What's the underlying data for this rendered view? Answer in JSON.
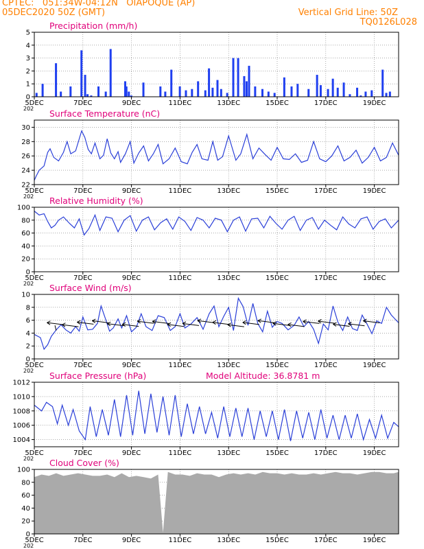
{
  "header": {
    "line1": "CPTEC:   051:34W-04:12N   OIAPOQUE (AP)",
    "line2": "05DEC2020 50Z (GMT)",
    "right1": "Vertical Grid Line: 50Z",
    "right2": "TQ0126L028"
  },
  "colors": {
    "header": "#ff8000",
    "title": "#e0007a",
    "line": "#2a3fd8",
    "bar": "#1f3ff0",
    "cloud": "#aaaaaa",
    "grid": "#777777"
  },
  "x_axis": {
    "labels": [
      "5DEC",
      "7DEC",
      "9DEC",
      "11DEC",
      "13DEC",
      "15DEC",
      "17DEC",
      "19DEC"
    ],
    "label_days": [
      0,
      2,
      4,
      6,
      8,
      10,
      12,
      14
    ],
    "sublabel": "202"
  },
  "extra_labels": {
    "model_altitude": "Model Altitude: 36.8781 m"
  },
  "chart_data": [
    {
      "type": "bar",
      "title": "Precipitation (mm/h)",
      "ylim": [
        0,
        5
      ],
      "yticks": [
        0,
        1,
        2,
        3,
        4,
        5
      ],
      "days": [
        0.05,
        0.3,
        0.85,
        1.05,
        1.45,
        1.9,
        2.05,
        2.15,
        2.3,
        2.6,
        2.9,
        3.1,
        3.7,
        3.75,
        3.85,
        3.95,
        4.45,
        5.15,
        5.35,
        5.6,
        5.95,
        6.2,
        6.45,
        6.7,
        7.0,
        7.15,
        7.3,
        7.5,
        7.65,
        7.9,
        8.15,
        8.35,
        8.6,
        8.7,
        8.8,
        9.05,
        9.35,
        9.6,
        9.85,
        10.25,
        10.55,
        10.8,
        11.25,
        11.6,
        11.75,
        12.05,
        12.25,
        12.45,
        12.7,
        12.95,
        13.25,
        13.4,
        13.6,
        13.85,
        14.3,
        14.45,
        14.6
      ],
      "values": [
        0.3,
        1.0,
        2.6,
        0.4,
        0.8,
        3.6,
        1.7,
        0.2,
        0.1,
        0.8,
        0.4,
        3.7,
        1.2,
        0.8,
        0.4,
        0.1,
        1.1,
        0.8,
        0.4,
        2.1,
        0.8,
        0.5,
        0.6,
        1.2,
        0.5,
        2.2,
        0.7,
        1.3,
        0.6,
        0.3,
        3.0,
        3.0,
        1.6,
        1.2,
        2.4,
        0.8,
        0.6,
        0.4,
        0.3,
        1.5,
        0.8,
        1.0,
        0.6,
        1.7,
        0.9,
        0.6,
        1.4,
        0.7,
        1.1,
        0.2,
        0.7,
        0.1,
        0.4,
        0.5,
        2.1,
        0.3,
        0.4
      ]
    },
    {
      "type": "line",
      "title": "Surface Temperature (nC)",
      "ylim": [
        22,
        31
      ],
      "yticks": [
        22,
        24,
        26,
        28,
        30
      ],
      "x": [
        0,
        0.08,
        0.2,
        0.4,
        0.55,
        0.65,
        0.8,
        1.0,
        1.2,
        1.35,
        1.5,
        1.7,
        1.95,
        2.08,
        2.22,
        2.35,
        2.5,
        2.7,
        2.85,
        3.0,
        3.15,
        3.3,
        3.45,
        3.55,
        3.75,
        3.95,
        4.1,
        4.3,
        4.5,
        4.7,
        4.9,
        5.1,
        5.3,
        5.55,
        5.8,
        6.05,
        6.3,
        6.5,
        6.7,
        6.9,
        7.15,
        7.35,
        7.55,
        7.75,
        8.0,
        8.3,
        8.5,
        8.75,
        9.0,
        9.25,
        9.5,
        9.75,
        10.0,
        10.25,
        10.5,
        10.75,
        11.0,
        11.25,
        11.5,
        11.75,
        12.0,
        12.25,
        12.5,
        12.75,
        13.0,
        13.25,
        13.5,
        13.75,
        14.0,
        14.25,
        14.5,
        14.75,
        15.0
      ],
      "values": [
        22.6,
        23.2,
        24.0,
        24.6,
        26.5,
        27.0,
        25.8,
        25.3,
        26.5,
        28.0,
        26.3,
        26.7,
        29.5,
        28.6,
        26.9,
        26.3,
        27.8,
        25.6,
        26.1,
        28.4,
        26.4,
        25.6,
        26.6,
        25.1,
        26.3,
        28.0,
        25.0,
        26.4,
        27.4,
        25.3,
        26.3,
        27.6,
        24.9,
        25.6,
        27.1,
        25.2,
        24.9,
        26.5,
        27.6,
        25.6,
        25.4,
        28.0,
        25.4,
        25.9,
        28.8,
        25.4,
        26.3,
        29.0,
        25.6,
        27.1,
        26.2,
        25.4,
        27.2,
        25.6,
        25.5,
        26.3,
        25.1,
        25.4,
        28.0,
        25.6,
        25.2,
        26.0,
        27.4,
        25.3,
        25.8,
        26.8,
        25.0,
        25.8,
        27.2,
        25.3,
        25.8,
        27.8,
        26.1
      ]
    },
    {
      "type": "line",
      "title": "Relative Humidity (%)",
      "ylim": [
        0,
        100
      ],
      "yticks": [
        0,
        20,
        40,
        60,
        80,
        100
      ],
      "x": [
        0,
        0.2,
        0.4,
        0.55,
        0.7,
        0.85,
        1.0,
        1.2,
        1.45,
        1.65,
        1.85,
        2.05,
        2.25,
        2.5,
        2.7,
        2.95,
        3.2,
        3.45,
        3.7,
        3.95,
        4.2,
        4.45,
        4.7,
        4.95,
        5.2,
        5.45,
        5.7,
        5.95,
        6.2,
        6.45,
        6.7,
        6.95,
        7.2,
        7.45,
        7.7,
        7.95,
        8.2,
        8.45,
        8.7,
        8.95,
        9.2,
        9.45,
        9.7,
        9.95,
        10.2,
        10.45,
        10.7,
        10.95,
        11.2,
        11.45,
        11.7,
        11.95,
        12.2,
        12.45,
        12.7,
        12.95,
        13.2,
        13.45,
        13.7,
        13.95,
        14.2,
        14.45,
        14.7,
        15.0
      ],
      "values": [
        94,
        88,
        90,
        78,
        68,
        72,
        80,
        85,
        75,
        68,
        82,
        57,
        67,
        88,
        64,
        85,
        83,
        62,
        80,
        87,
        63,
        80,
        85,
        65,
        76,
        82,
        66,
        85,
        78,
        64,
        84,
        80,
        68,
        83,
        80,
        62,
        80,
        85,
        63,
        82,
        83,
        68,
        86,
        75,
        66,
        80,
        86,
        64,
        80,
        84,
        66,
        80,
        72,
        65,
        85,
        74,
        68,
        82,
        85,
        66,
        78,
        82,
        68,
        80
      ]
    },
    {
      "type": "line",
      "title": "Surface Wind (m/s)",
      "ylim": [
        0,
        10
      ],
      "yticks": [
        0,
        2,
        4,
        6,
        8,
        10
      ],
      "x": [
        0,
        0.25,
        0.4,
        0.55,
        0.7,
        0.9,
        1.1,
        1.3,
        1.5,
        1.7,
        1.85,
        2.0,
        2.2,
        2.4,
        2.6,
        2.75,
        2.95,
        3.1,
        3.25,
        3.45,
        3.6,
        3.8,
        4.0,
        4.2,
        4.4,
        4.6,
        4.85,
        5.1,
        5.35,
        5.6,
        5.8,
        6.0,
        6.2,
        6.45,
        6.7,
        6.95,
        7.2,
        7.4,
        7.6,
        7.8,
        8.0,
        8.2,
        8.4,
        8.6,
        8.8,
        9.0,
        9.2,
        9.4,
        9.6,
        9.8,
        10.0,
        10.2,
        10.45,
        10.7,
        10.9,
        11.1,
        11.3,
        11.5,
        11.7,
        11.9,
        12.1,
        12.3,
        12.5,
        12.7,
        12.9,
        13.1,
        13.3,
        13.5,
        13.7,
        13.9,
        14.1,
        14.3,
        14.5,
        14.7,
        15.0
      ],
      "values": [
        3.8,
        3.3,
        1.5,
        2.2,
        3.5,
        4.5,
        5.3,
        4.5,
        4.0,
        5.0,
        4.3,
        6.5,
        4.5,
        4.6,
        5.5,
        8.2,
        6.0,
        4.3,
        4.8,
        6.2,
        4.8,
        6.7,
        4.2,
        4.9,
        7.0,
        5.0,
        4.4,
        6.7,
        6.4,
        4.4,
        5.0,
        7.0,
        4.8,
        5.4,
        6.4,
        4.6,
        7.0,
        8.2,
        5.0,
        6.6,
        8.0,
        4.4,
        9.4,
        8.1,
        5.2,
        8.6,
        5.5,
        4.2,
        7.4,
        4.9,
        5.8,
        5.5,
        4.5,
        5.2,
        6.5,
        5.0,
        5.8,
        4.6,
        2.4,
        5.4,
        4.5,
        8.2,
        5.7,
        4.4,
        6.5,
        4.7,
        4.4,
        6.8,
        5.4,
        3.9,
        5.9,
        5.5,
        8.0,
        6.8,
        5.6
      ]
    },
    {
      "type": "line",
      "title": "Surface Pressure (hPa)",
      "ylim": [
        1003,
        1012
      ],
      "yticks": [
        1004,
        1006,
        1008,
        1010,
        1012
      ],
      "x": [
        0,
        0.3,
        0.5,
        0.75,
        0.95,
        1.15,
        1.4,
        1.6,
        1.85,
        2.1,
        2.3,
        2.55,
        2.8,
        3.05,
        3.3,
        3.55,
        3.8,
        4.05,
        4.3,
        4.55,
        4.8,
        5.05,
        5.3,
        5.55,
        5.8,
        6.05,
        6.3,
        6.55,
        6.8,
        7.05,
        7.3,
        7.55,
        7.8,
        8.05,
        8.3,
        8.55,
        8.8,
        9.05,
        9.3,
        9.55,
        9.8,
        10.05,
        10.3,
        10.55,
        10.8,
        11.05,
        11.3,
        11.55,
        11.8,
        12.05,
        12.3,
        12.55,
        12.8,
        13.05,
        13.3,
        13.55,
        13.8,
        14.05,
        14.3,
        14.55,
        14.8,
        15.0
      ],
      "values": [
        1008.8,
        1008.0,
        1009.2,
        1008.6,
        1006.2,
        1008.8,
        1006.0,
        1008.2,
        1005.2,
        1004.0,
        1008.6,
        1004.4,
        1008.2,
        1004.6,
        1009.6,
        1004.4,
        1010.2,
        1004.6,
        1010.8,
        1004.8,
        1010.4,
        1005.0,
        1010.0,
        1004.6,
        1010.2,
        1004.4,
        1009.0,
        1004.8,
        1008.6,
        1004.8,
        1007.8,
        1004.2,
        1008.6,
        1004.4,
        1008.4,
        1004.4,
        1008.4,
        1004.0,
        1008.0,
        1004.4,
        1008.0,
        1004.0,
        1008.2,
        1003.8,
        1008.0,
        1004.2,
        1007.8,
        1004.0,
        1008.2,
        1004.2,
        1007.4,
        1004.0,
        1007.4,
        1004.2,
        1007.6,
        1004.0,
        1006.8,
        1004.2,
        1007.4,
        1004.2,
        1006.4,
        1005.8
      ]
    },
    {
      "type": "area",
      "title": "Cloud Cover (%)",
      "ylim": [
        0,
        100
      ],
      "yticks": [
        0,
        20,
        40,
        60,
        80,
        100
      ],
      "x": [
        0,
        0.3,
        0.6,
        0.9,
        1.2,
        1.5,
        1.8,
        2.1,
        2.4,
        2.7,
        3.0,
        3.3,
        3.6,
        3.9,
        4.2,
        4.5,
        4.8,
        5.1,
        5.3,
        5.5,
        5.8,
        6.1,
        6.4,
        6.7,
        7.0,
        7.3,
        7.6,
        7.9,
        8.2,
        8.5,
        8.8,
        9.1,
        9.4,
        9.7,
        10.0,
        10.3,
        10.6,
        10.9,
        11.2,
        11.5,
        11.8,
        12.1,
        12.4,
        12.7,
        13.0,
        13.3,
        13.6,
        13.9,
        14.2,
        14.5,
        14.8,
        15.0
      ],
      "values": [
        88,
        92,
        90,
        94,
        90,
        92,
        94,
        92,
        90,
        90,
        92,
        88,
        94,
        88,
        90,
        88,
        86,
        92,
        2,
        96,
        92,
        92,
        90,
        94,
        92,
        92,
        88,
        92,
        94,
        92,
        94,
        92,
        96,
        94,
        94,
        92,
        94,
        92,
        92,
        94,
        92,
        94,
        96,
        94,
        94,
        92,
        94,
        96,
        96,
        94,
        94,
        96
      ]
    }
  ]
}
